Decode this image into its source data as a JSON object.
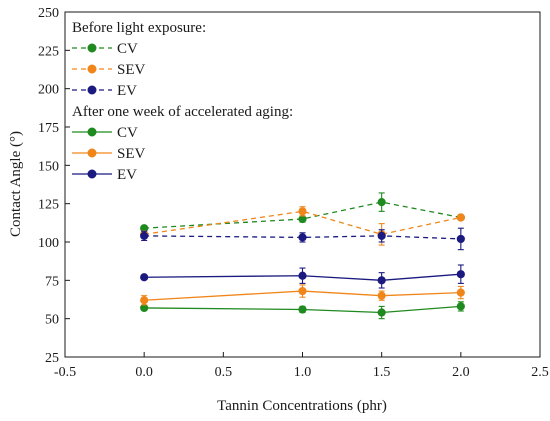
{
  "chart_data": {
    "type": "line",
    "xlabel": "Tannin Concentrations (phr)",
    "ylabel": "Contact Angle (°)",
    "xlim": [
      -0.5,
      2.5
    ],
    "ylim": [
      25,
      250
    ],
    "xticks": [
      "-0.5",
      "0.0",
      "0.5",
      "1.0",
      "1.5",
      "2.0",
      "2.5"
    ],
    "xtick_values": [
      -0.5,
      0.0,
      0.5,
      1.0,
      1.5,
      2.0,
      2.5
    ],
    "yticks": [
      "25",
      "50",
      "75",
      "100",
      "125",
      "150",
      "175",
      "200",
      "225",
      "250"
    ],
    "ytick_values": [
      25,
      50,
      75,
      100,
      125,
      150,
      175,
      200,
      225,
      250
    ],
    "grid": false,
    "legend_position": "top-left",
    "legend_groups": [
      {
        "title": "Before light exposure:",
        "series": [
          "CV-before",
          "SEV-before",
          "EV-before"
        ]
      },
      {
        "title": "After one week of accelerated aging:",
        "series": [
          "CV-after",
          "SEV-after",
          "EV-after"
        ]
      }
    ],
    "x": [
      0.0,
      1.0,
      1.5,
      2.0
    ],
    "series": [
      {
        "id": "CV-before",
        "name": "CV",
        "style": "dashed",
        "color": "#1f8a1f",
        "values": [
          109,
          115,
          126,
          116
        ],
        "errors": [
          1,
          2,
          6,
          1
        ]
      },
      {
        "id": "SEV-before",
        "name": "SEV",
        "style": "dashed",
        "color": "#f0861a",
        "values": [
          105,
          120,
          105,
          116
        ],
        "errors": [
          1,
          3,
          7,
          1
        ]
      },
      {
        "id": "EV-before",
        "name": "EV",
        "style": "dashed",
        "color": "#1a1a80",
        "values": [
          104,
          103,
          104,
          102
        ],
        "errors": [
          3,
          3,
          4,
          7
        ]
      },
      {
        "id": "CV-after",
        "name": "CV",
        "style": "solid",
        "color": "#1f8a1f",
        "values": [
          57,
          56,
          54,
          58
        ],
        "errors": [
          1,
          2,
          4,
          3
        ]
      },
      {
        "id": "SEV-after",
        "name": "SEV",
        "style": "solid",
        "color": "#f0861a",
        "values": [
          62,
          68,
          65,
          67
        ],
        "errors": [
          3,
          4,
          3,
          4
        ]
      },
      {
        "id": "EV-after",
        "name": "EV",
        "style": "solid",
        "color": "#1a1a80",
        "values": [
          77,
          78,
          75,
          79
        ],
        "errors": [
          1,
          5,
          5,
          6
        ]
      }
    ]
  }
}
